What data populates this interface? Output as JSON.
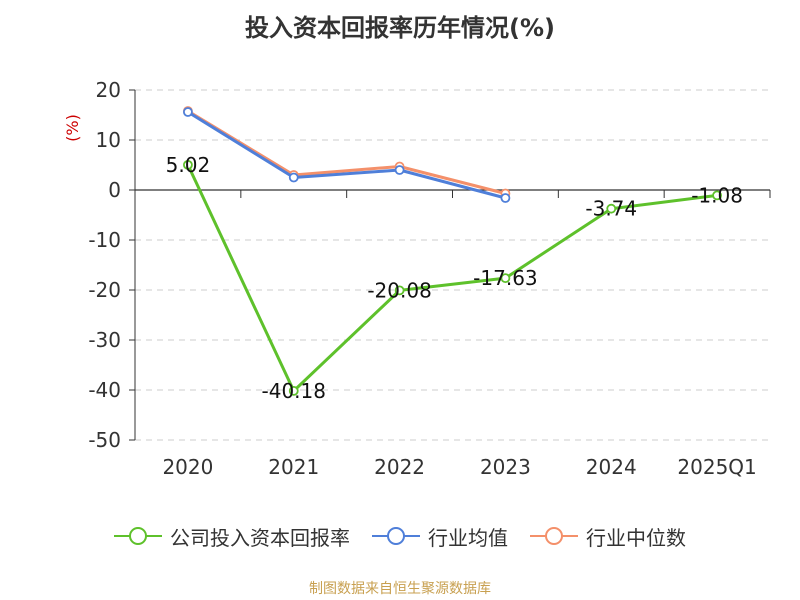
{
  "title": "投入资本回报率历年情况(%)",
  "source": "制图数据来自恒生聚源数据库",
  "chart_data": {
    "type": "line",
    "title": "投入资本回报率历年情况(%)",
    "ylabel": "(%)",
    "xlabel": "",
    "categories": [
      "2020",
      "2021",
      "2022",
      "2023",
      "2024",
      "2025Q1"
    ],
    "ylim": [
      -50,
      20
    ],
    "yticks": [
      20,
      10,
      0,
      -10,
      -20,
      -30,
      -40,
      -50
    ],
    "grid": true,
    "legend_position": "bottom",
    "series": [
      {
        "name": "公司投入资本回报率",
        "color": "#5ec12b",
        "values": [
          5.02,
          -40.18,
          -20.08,
          -17.63,
          -3.74,
          -1.08
        ],
        "labels": [
          "5.02",
          "-40.18",
          "-20.08",
          "-17.63",
          "-3.74",
          "-1.08"
        ]
      },
      {
        "name": "行业均值",
        "color": "#4f7fd9",
        "values": [
          15.6,
          2.5,
          4.0,
          -1.6,
          null,
          null
        ]
      },
      {
        "name": "行业中位数",
        "color": "#f4906a",
        "values": [
          15.8,
          3.0,
          4.7,
          -0.7,
          null,
          null
        ]
      }
    ]
  }
}
